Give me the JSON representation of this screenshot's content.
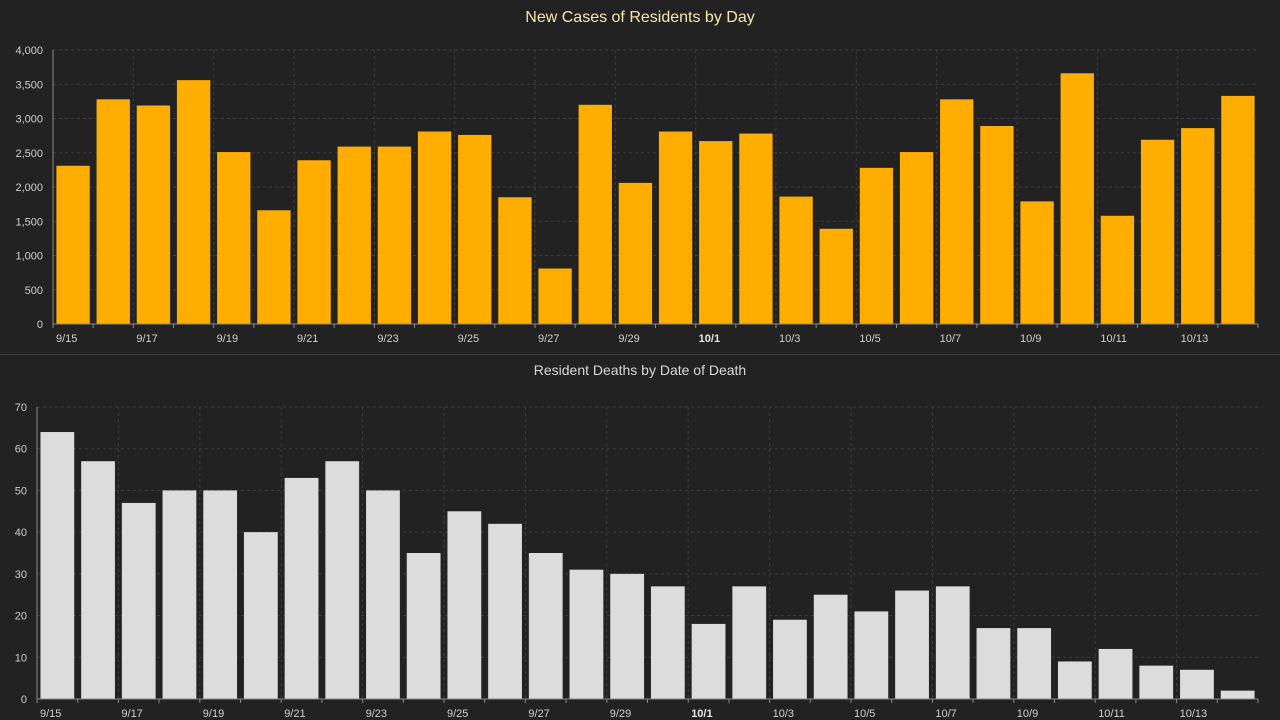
{
  "chart_data": [
    {
      "type": "bar",
      "title": "New Cases of Residents by Day",
      "xlabel": "",
      "ylabel": "",
      "ylim": [
        0,
        4000
      ],
      "yticks": [
        "0",
        "500",
        "1,000",
        "1,500",
        "2,000",
        "2,500",
        "3,000",
        "3,500",
        "4,000"
      ],
      "ytick_values": [
        0,
        500,
        1000,
        1500,
        2000,
        2500,
        3000,
        3500,
        4000
      ],
      "categories": [
        "9/15",
        "9/16",
        "9/17",
        "9/18",
        "9/19",
        "9/20",
        "9/21",
        "9/22",
        "9/23",
        "9/24",
        "9/25",
        "9/26",
        "9/27",
        "9/28",
        "9/29",
        "9/30",
        "10/1",
        "10/2",
        "10/3",
        "10/4",
        "10/5",
        "10/6",
        "10/7",
        "10/8",
        "10/9",
        "10/10",
        "10/11",
        "10/12",
        "10/13",
        "10/14"
      ],
      "values": [
        2310,
        3280,
        3190,
        3560,
        2510,
        1660,
        2390,
        2590,
        2590,
        2810,
        2760,
        1850,
        810,
        3200,
        2060,
        2810,
        2670,
        2780,
        1860,
        1390,
        2280,
        2510,
        3280,
        2890,
        1790,
        3660,
        1580,
        2690,
        2860,
        3330
      ],
      "tick_labels": [
        "9/15",
        "9/17",
        "9/19",
        "9/21",
        "9/23",
        "9/25",
        "9/27",
        "9/29",
        "10/1",
        "10/3",
        "10/5",
        "10/7",
        "10/9",
        "10/11",
        "10/13"
      ],
      "bold_tick": "10/1",
      "grid": true,
      "bar_color": "#ffad00",
      "title_color": "#f5e6b0"
    },
    {
      "type": "bar",
      "title": "Resident Deaths by Date of Death",
      "xlabel": "",
      "ylabel": "",
      "ylim": [
        0,
        70
      ],
      "yticks": [
        "0",
        "10",
        "20",
        "30",
        "40",
        "50",
        "60",
        "70"
      ],
      "ytick_values": [
        0,
        10,
        20,
        30,
        40,
        50,
        60,
        70
      ],
      "categories": [
        "9/15",
        "9/16",
        "9/17",
        "9/18",
        "9/19",
        "9/20",
        "9/21",
        "9/22",
        "9/23",
        "9/24",
        "9/25",
        "9/26",
        "9/27",
        "9/28",
        "9/29",
        "9/30",
        "10/1",
        "10/2",
        "10/3",
        "10/4",
        "10/5",
        "10/6",
        "10/7",
        "10/8",
        "10/9",
        "10/10",
        "10/11",
        "10/12",
        "10/13",
        "10/14"
      ],
      "values": [
        64,
        57,
        47,
        50,
        50,
        40,
        53,
        57,
        50,
        35,
        45,
        42,
        35,
        31,
        30,
        27,
        18,
        27,
        19,
        25,
        21,
        26,
        27,
        17,
        17,
        9,
        12,
        8,
        7,
        2
      ],
      "tick_labels": [
        "9/15",
        "9/17",
        "9/19",
        "9/21",
        "9/23",
        "9/25",
        "9/27",
        "9/29",
        "10/1",
        "10/3",
        "10/5",
        "10/7",
        "10/9",
        "10/11",
        "10/13"
      ],
      "bold_tick": "10/1",
      "grid": true,
      "bar_color": "#dcdcdc",
      "title_color": "#d8d8d8"
    }
  ]
}
